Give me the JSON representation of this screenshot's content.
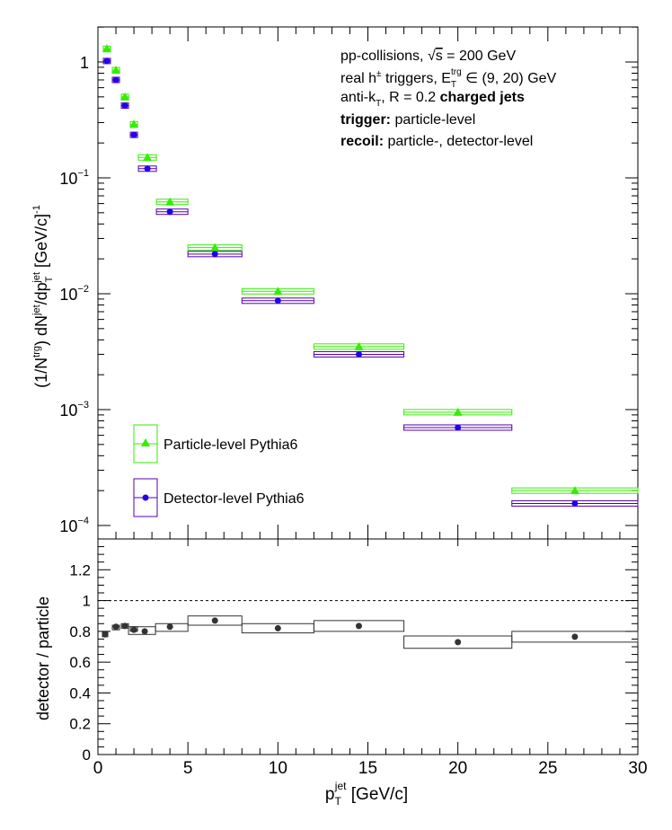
{
  "chart_data": [
    {
      "type": "scatter",
      "panel": "top",
      "yscale": "log",
      "xlim": [
        0,
        30
      ],
      "ylim": [
        0.0001,
        2.0
      ],
      "ylabel_parts": {
        "a": "(1/N",
        "a_sup": "trg",
        "b": ") dN",
        "b_sup": "jet",
        "c": "/dp",
        "c_sub": "T",
        "c_sup": "jet",
        "d": " [GeV/c]",
        "d_sup": "-1"
      },
      "yticks": [
        {
          "value": 0.0001,
          "base": "10",
          "exp": "−4"
        },
        {
          "value": 0.001,
          "base": "10",
          "exp": "−3"
        },
        {
          "value": 0.01,
          "base": "10",
          "exp": "−2"
        },
        {
          "value": 0.1,
          "base": "10",
          "exp": "−1"
        },
        {
          "value": 1,
          "base": "1",
          "exp": ""
        }
      ],
      "annotation": {
        "line1_pre": "pp-collisions, ",
        "line1_sqrt": "√",
        "line1_s": "s",
        "line1_post": " = 200 GeV",
        "line2_pre": "real h",
        "line2_sup": "±",
        "line2_mid": " triggers, E",
        "line2_sub": "T",
        "line2_sup2": "trg",
        "line2_post": " ∈ (9, 20) GeV",
        "line3_pre": "anti-k",
        "line3_sub": "T",
        "line3_mid": ", R = 0.2 ",
        "line3_bold": "charged jets",
        "line4_bold": "trigger:",
        "line4_post": " particle-level",
        "line5_bold": "recoil:",
        "line5_post": " particle-, detector-level"
      },
      "series": [
        {
          "name": "Particle-level Pythia6",
          "color": "#33ee00",
          "marker": "triangle",
          "points": [
            {
              "x": 0.5,
              "y": 1.3,
              "xlo": 0.3,
              "xhi": 0.7
            },
            {
              "x": 1.0,
              "y": 0.85,
              "xlo": 0.8,
              "xhi": 1.2
            },
            {
              "x": 1.5,
              "y": 0.5,
              "xlo": 1.3,
              "xhi": 1.7
            },
            {
              "x": 2.0,
              "y": 0.29,
              "xlo": 1.8,
              "xhi": 2.2
            },
            {
              "x": 2.75,
              "y": 0.15,
              "xlo": 2.25,
              "xhi": 3.25
            },
            {
              "x": 4.0,
              "y": 0.062,
              "xlo": 3.25,
              "xhi": 5.0
            },
            {
              "x": 6.5,
              "y": 0.025,
              "xlo": 5.0,
              "xhi": 8.0
            },
            {
              "x": 10.0,
              "y": 0.0105,
              "xlo": 8.0,
              "xhi": 12.0
            },
            {
              "x": 14.5,
              "y": 0.0035,
              "xlo": 12.0,
              "xhi": 17.0
            },
            {
              "x": 20.0,
              "y": 0.00095,
              "xlo": 17.0,
              "xhi": 23.0
            },
            {
              "x": 26.5,
              "y": 0.0002,
              "xlo": 23.0,
              "xhi": 30.0
            }
          ]
        },
        {
          "name": "Detector-level Pythia6",
          "color": "#2200ee",
          "box_color": "#5500aa",
          "marker": "circle",
          "points": [
            {
              "x": 0.5,
              "y": 1.02,
              "xlo": 0.3,
              "xhi": 0.7
            },
            {
              "x": 1.0,
              "y": 0.7,
              "xlo": 0.8,
              "xhi": 1.2
            },
            {
              "x": 1.5,
              "y": 0.42,
              "xlo": 1.3,
              "xhi": 1.7
            },
            {
              "x": 2.0,
              "y": 0.235,
              "xlo": 1.8,
              "xhi": 2.2
            },
            {
              "x": 2.75,
              "y": 0.12,
              "xlo": 2.25,
              "xhi": 3.25
            },
            {
              "x": 4.0,
              "y": 0.051,
              "xlo": 3.25,
              "xhi": 5.0
            },
            {
              "x": 6.5,
              "y": 0.022,
              "xlo": 5.0,
              "xhi": 8.0
            },
            {
              "x": 10.0,
              "y": 0.0087,
              "xlo": 8.0,
              "xhi": 12.0
            },
            {
              "x": 14.5,
              "y": 0.003,
              "xlo": 12.0,
              "xhi": 17.0
            },
            {
              "x": 20.0,
              "y": 0.0007,
              "xlo": 17.0,
              "xhi": 23.0
            },
            {
              "x": 26.5,
              "y": 0.000155,
              "xlo": 23.0,
              "xhi": 30.0
            }
          ]
        }
      ],
      "legend": {
        "placement": "lower-left"
      }
    },
    {
      "type": "scatter",
      "panel": "bottom",
      "ylabel": "detector / particle",
      "xlabel_main": "p",
      "xlabel_sub": "T",
      "xlabel_sup": "jet",
      "xlabel_unit": " [GeV/c]",
      "xlim": [
        0,
        30
      ],
      "ylim": [
        0,
        1.4
      ],
      "xticks": [
        0,
        5,
        10,
        15,
        20,
        25,
        30
      ],
      "yticks": [
        "0",
        "0.2",
        "0.4",
        "0.6",
        "0.8",
        "1",
        "1.2"
      ],
      "reference_line": 1.0,
      "color": "#333333",
      "points": [
        {
          "x": 0.4,
          "y": 0.78,
          "xlo": 0.25,
          "xhi": 0.55,
          "ylo": 0.765,
          "yhi": 0.795
        },
        {
          "x": 1.0,
          "y": 0.83,
          "xlo": 0.8,
          "xhi": 1.2,
          "ylo": 0.81,
          "yhi": 0.84
        },
        {
          "x": 1.5,
          "y": 0.835,
          "xlo": 1.3,
          "xhi": 1.7,
          "ylo": 0.82,
          "yhi": 0.85
        },
        {
          "x": 2.0,
          "y": 0.81,
          "xlo": 1.8,
          "xhi": 2.2,
          "ylo": 0.8,
          "yhi": 0.83
        },
        {
          "x": 2.6,
          "y": 0.8,
          "xlo": 1.7,
          "xhi": 3.2,
          "ylo": 0.78,
          "yhi": 0.83
        },
        {
          "x": 4.0,
          "y": 0.83,
          "xlo": 3.2,
          "xhi": 5.0,
          "ylo": 0.8,
          "yhi": 0.85
        },
        {
          "x": 6.5,
          "y": 0.87,
          "xlo": 5.0,
          "xhi": 8.0,
          "ylo": 0.84,
          "yhi": 0.9
        },
        {
          "x": 10.0,
          "y": 0.82,
          "xlo": 8.0,
          "xhi": 12.0,
          "ylo": 0.79,
          "yhi": 0.85
        },
        {
          "x": 14.5,
          "y": 0.835,
          "xlo": 12.0,
          "xhi": 17.0,
          "ylo": 0.8,
          "yhi": 0.87
        },
        {
          "x": 20.0,
          "y": 0.73,
          "xlo": 17.0,
          "xhi": 23.0,
          "ylo": 0.69,
          "yhi": 0.77
        },
        {
          "x": 26.5,
          "y": 0.765,
          "xlo": 23.0,
          "xhi": 30.0,
          "ylo": 0.73,
          "yhi": 0.8
        }
      ]
    }
  ]
}
